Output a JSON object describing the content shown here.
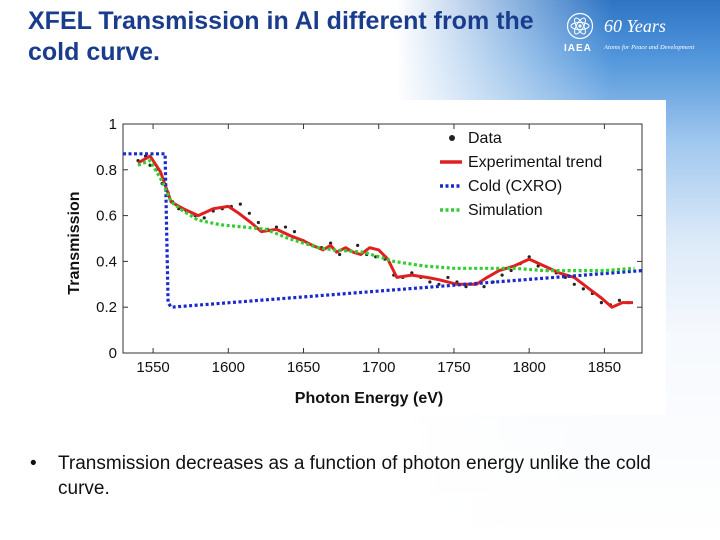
{
  "slide": {
    "title": "XFEL Transmission in Al different from the cold curve.",
    "bullet": "Transmission decreases as a function of photon energy unlike the cold curve.",
    "logo_text": "IAEA",
    "logo_years": "60 Years",
    "logo_tagline": "Atoms for Peace and Development"
  },
  "chart_data": {
    "type": "line",
    "title": "",
    "xlabel": "Photon Energy (eV)",
    "ylabel": "Transmission",
    "xlim": [
      1530,
      1875
    ],
    "ylim": [
      0,
      1
    ],
    "xticks": [
      1550,
      1600,
      1650,
      1700,
      1750,
      1800,
      1850
    ],
    "yticks": [
      0,
      0.2,
      0.4,
      0.6,
      0.8,
      1
    ],
    "ytick_labels": [
      "0",
      "0.2",
      "0.4",
      "0.6",
      "0.8",
      "1"
    ],
    "legend_position": "top-right",
    "series": [
      {
        "name": "Data",
        "style": "scatter",
        "color": "#222222",
        "x": [
          1540,
          1545,
          1548,
          1552,
          1556,
          1560,
          1563,
          1567,
          1572,
          1578,
          1584,
          1590,
          1596,
          1602,
          1608,
          1614,
          1620,
          1626,
          1632,
          1638,
          1644,
          1650,
          1656,
          1662,
          1668,
          1674,
          1680,
          1686,
          1692,
          1698,
          1704,
          1710,
          1716,
          1722,
          1728,
          1734,
          1740,
          1746,
          1752,
          1758,
          1764,
          1770,
          1776,
          1782,
          1788,
          1794,
          1800,
          1806,
          1812,
          1818,
          1824,
          1830,
          1836,
          1842,
          1848,
          1854,
          1860,
          1866
        ],
        "y": [
          0.84,
          0.86,
          0.82,
          0.8,
          0.74,
          0.7,
          0.66,
          0.63,
          0.62,
          0.6,
          0.59,
          0.62,
          0.63,
          0.64,
          0.65,
          0.61,
          0.57,
          0.54,
          0.55,
          0.55,
          0.53,
          0.49,
          0.47,
          0.46,
          0.48,
          0.43,
          0.45,
          0.47,
          0.43,
          0.42,
          0.41,
          0.34,
          0.33,
          0.35,
          0.33,
          0.31,
          0.3,
          0.33,
          0.31,
          0.29,
          0.3,
          0.29,
          0.31,
          0.34,
          0.36,
          0.39,
          0.42,
          0.38,
          0.36,
          0.35,
          0.33,
          0.3,
          0.28,
          0.26,
          0.22,
          0.21,
          0.23,
          0.22
        ]
      },
      {
        "name": "Experimental trend",
        "style": "solid",
        "color": "#e02020",
        "x": [
          1540,
          1548,
          1555,
          1562,
          1570,
          1580,
          1590,
          1600,
          1607,
          1615,
          1622,
          1632,
          1642,
          1650,
          1656,
          1663,
          1668,
          1672,
          1678,
          1683,
          1688,
          1694,
          1700,
          1706,
          1712,
          1722,
          1732,
          1740,
          1752,
          1765,
          1772,
          1780,
          1790,
          1800,
          1810,
          1820,
          1830,
          1840,
          1848,
          1855,
          1862,
          1869
        ],
        "y": [
          0.83,
          0.86,
          0.79,
          0.66,
          0.63,
          0.6,
          0.63,
          0.64,
          0.61,
          0.57,
          0.53,
          0.54,
          0.51,
          0.49,
          0.47,
          0.45,
          0.47,
          0.44,
          0.46,
          0.44,
          0.43,
          0.46,
          0.45,
          0.41,
          0.33,
          0.34,
          0.33,
          0.32,
          0.3,
          0.3,
          0.33,
          0.36,
          0.38,
          0.41,
          0.38,
          0.35,
          0.33,
          0.28,
          0.24,
          0.2,
          0.22,
          0.22
        ]
      },
      {
        "name": "Cold (CXRO)",
        "style": "dotted",
        "color": "#1a2acc",
        "x": [
          1530,
          1558,
          1560,
          1562,
          1875
        ],
        "y": [
          0.87,
          0.87,
          0.22,
          0.2,
          0.36
        ]
      },
      {
        "name": "Simulation",
        "style": "dotted",
        "color": "#33cc33",
        "x": [
          1540,
          1548,
          1556,
          1562,
          1570,
          1580,
          1595,
          1610,
          1625,
          1640,
          1650,
          1660,
          1670,
          1690,
          1710,
          1730,
          1750,
          1770,
          1790,
          1810,
          1830,
          1850,
          1870
        ],
        "y": [
          0.82,
          0.84,
          0.75,
          0.66,
          0.62,
          0.58,
          0.56,
          0.55,
          0.54,
          0.5,
          0.48,
          0.46,
          0.45,
          0.44,
          0.4,
          0.38,
          0.37,
          0.37,
          0.37,
          0.36,
          0.36,
          0.36,
          0.37
        ]
      }
    ]
  }
}
